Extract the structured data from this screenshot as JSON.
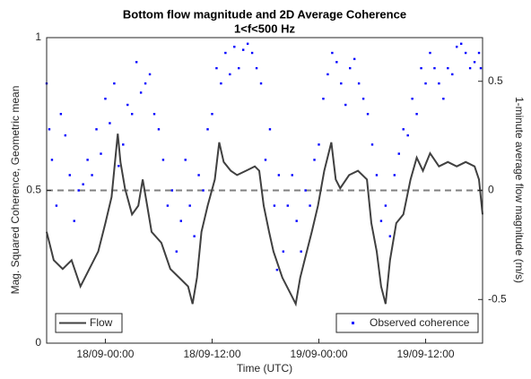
{
  "chart_data": {
    "type": "line-scatter",
    "title": "Bottom flow magnitude and 2D Average Coherence",
    "subtitle": "1<f<500 Hz",
    "xlabel": "Time (UTC)",
    "ylabel": "Mag. Squared Coherence, Geometric mean",
    "y2label": "1-minute average flow magnitude (m/s)",
    "xlim": [
      -6.6,
      42.4
    ],
    "xticks": [
      {
        "value": 0,
        "label": "18/09-00:00"
      },
      {
        "value": 12,
        "label": "18/09-12:00"
      },
      {
        "value": 24,
        "label": "19/09-00:00"
      },
      {
        "value": 36,
        "label": "19/09-12:00"
      }
    ],
    "ylim": [
      0,
      1
    ],
    "yticks": [
      0,
      0.5,
      1
    ],
    "y2lim": [
      -0.7,
      0.7
    ],
    "y2ticks": [
      -0.5,
      0,
      0.5
    ],
    "reference_line": {
      "axis": "y2",
      "value": 0,
      "color": "#808080"
    },
    "series": [
      {
        "name": "Flow",
        "kind": "line",
        "axis": "y2",
        "color": "#404040",
        "x": [
          -6.6,
          -5.8,
          -4.8,
          -3.8,
          -2.8,
          -1.8,
          -0.8,
          0,
          0.7,
          1.4,
          1.7,
          2.2,
          3.0,
          3.7,
          4.2,
          4.7,
          5.2,
          6.3,
          7.3,
          8.3,
          9.3,
          9.8,
          10.3,
          10.8,
          11.5,
          12.3,
          12.8,
          13.3,
          14.1,
          14.8,
          15.8,
          16.8,
          17.3,
          17.8,
          18.4,
          18.9,
          19.9,
          20.9,
          21.4,
          21.9,
          22.4,
          23.2,
          23.9,
          24.6,
          25.4,
          25.9,
          26.4,
          27.4,
          28.4,
          29.4,
          29.9,
          30.5,
          31.0,
          31.5,
          32.0,
          32.7,
          33.5,
          34.3,
          35.0,
          35.7,
          36.5,
          37.5,
          38.5,
          39.5,
          40.5,
          41.5,
          42.0,
          42.4
        ],
        "values": [
          -0.19,
          -0.32,
          -0.36,
          -0.32,
          -0.44,
          -0.36,
          -0.28,
          -0.15,
          -0.03,
          0.26,
          0.13,
          0.01,
          -0.11,
          -0.07,
          0.05,
          -0.07,
          -0.19,
          -0.24,
          -0.36,
          -0.4,
          -0.44,
          -0.52,
          -0.4,
          -0.19,
          -0.07,
          0.05,
          0.22,
          0.13,
          0.09,
          0.07,
          0.09,
          0.11,
          0.09,
          -0.07,
          -0.19,
          -0.28,
          -0.4,
          -0.48,
          -0.52,
          -0.4,
          -0.32,
          -0.19,
          -0.07,
          0.09,
          0.22,
          0.05,
          0.01,
          0.07,
          0.09,
          0.05,
          -0.15,
          -0.28,
          -0.44,
          -0.52,
          -0.32,
          -0.15,
          -0.11,
          0.05,
          0.15,
          0.09,
          0.17,
          0.11,
          0.13,
          0.11,
          0.13,
          0.11,
          0.05,
          -0.11
        ]
      },
      {
        "name": "Observed coherence",
        "kind": "scatter",
        "axis": "y",
        "color": "#0000ff",
        "x": [
          -6.6,
          -6,
          -5,
          -4,
          -3,
          -2,
          -1,
          0,
          1,
          2,
          3,
          3.5,
          4.5,
          5.5,
          6.5,
          7.5,
          8.5,
          9.5,
          10.5,
          11.5,
          12.5,
          13.5,
          14.5,
          15.5,
          16.5,
          17.5,
          18.5,
          19.5,
          20.5,
          21.5,
          22.5,
          23.5,
          24.5,
          25.5,
          26.5,
          27.5,
          28.5,
          29.5,
          30.5,
          31.5,
          32.5,
          33.5,
          34.5,
          35.5,
          36.5,
          37.5,
          38.5,
          39.5,
          40.5,
          41.5,
          42.2,
          -6.3,
          -5.5,
          -4.5,
          -3.5,
          -2.5,
          -1.5,
          -0.5,
          0.5,
          1.5,
          2.5,
          4,
          5,
          6,
          7,
          8,
          9,
          10,
          11,
          12,
          13,
          14,
          15,
          16,
          17,
          18,
          19,
          19.3,
          20,
          21,
          22,
          23,
          24,
          25,
          26,
          27,
          28,
          29,
          30,
          31,
          32,
          33,
          34,
          35,
          36,
          37,
          38,
          39,
          40,
          41,
          42
        ],
        "values": [
          0.85,
          0.6,
          0.75,
          0.55,
          0.5,
          0.6,
          0.7,
          0.8,
          0.85,
          0.65,
          0.75,
          0.92,
          0.85,
          0.75,
          0.6,
          0.5,
          0.4,
          0.45,
          0.55,
          0.7,
          0.9,
          0.95,
          0.97,
          0.96,
          0.95,
          0.85,
          0.7,
          0.55,
          0.45,
          0.4,
          0.5,
          0.6,
          0.8,
          0.95,
          0.85,
          0.9,
          0.85,
          0.75,
          0.55,
          0.45,
          0.55,
          0.7,
          0.8,
          0.9,
          0.95,
          0.85,
          0.9,
          0.97,
          0.95,
          0.92,
          0.9,
          0.7,
          0.45,
          0.68,
          0.4,
          0.52,
          0.55,
          0.62,
          0.72,
          0.58,
          0.78,
          0.82,
          0.88,
          0.7,
          0.45,
          0.3,
          0.6,
          0.35,
          0.5,
          0.75,
          0.85,
          0.88,
          0.9,
          0.98,
          0.9,
          0.6,
          0.45,
          0.24,
          0.3,
          0.55,
          0.3,
          0.45,
          0.65,
          0.88,
          0.92,
          0.78,
          0.93,
          0.8,
          0.65,
          0.4,
          0.35,
          0.62,
          0.68,
          0.75,
          0.85,
          0.9,
          0.8,
          0.88,
          0.98,
          0.9,
          0.95
        ]
      }
    ]
  }
}
